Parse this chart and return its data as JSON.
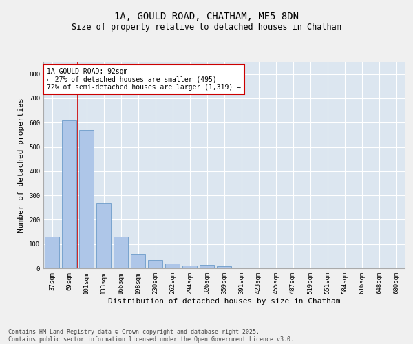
{
  "title_line1": "1A, GOULD ROAD, CHATHAM, ME5 8DN",
  "title_line2": "Size of property relative to detached houses in Chatham",
  "xlabel": "Distribution of detached houses by size in Chatham",
  "ylabel": "Number of detached properties",
  "categories": [
    "37sqm",
    "69sqm",
    "101sqm",
    "133sqm",
    "166sqm",
    "198sqm",
    "230sqm",
    "262sqm",
    "294sqm",
    "326sqm",
    "359sqm",
    "391sqm",
    "423sqm",
    "455sqm",
    "487sqm",
    "519sqm",
    "551sqm",
    "584sqm",
    "616sqm",
    "648sqm",
    "680sqm"
  ],
  "values": [
    130,
    610,
    570,
    270,
    130,
    60,
    35,
    20,
    12,
    14,
    8,
    2,
    1,
    0,
    0,
    0,
    0,
    0,
    0,
    0,
    1
  ],
  "bar_color": "#aec6e8",
  "bar_edge_color": "#5a8fc2",
  "vline_x": 1.5,
  "vline_color": "#cc0000",
  "annotation_text": "1A GOULD ROAD: 92sqm\n← 27% of detached houses are smaller (495)\n72% of semi-detached houses are larger (1,319) →",
  "annotation_box_color": "#ffffff",
  "annotation_box_edge": "#cc0000",
  "ylim": [
    0,
    850
  ],
  "yticks": [
    0,
    100,
    200,
    300,
    400,
    500,
    600,
    700,
    800
  ],
  "background_color": "#dce6f0",
  "fig_background_color": "#f0f0f0",
  "footer_text": "Contains HM Land Registry data © Crown copyright and database right 2025.\nContains public sector information licensed under the Open Government Licence v3.0.",
  "title_fontsize": 10,
  "subtitle_fontsize": 8.5,
  "axis_label_fontsize": 8,
  "tick_fontsize": 6.5,
  "annotation_fontsize": 7,
  "footer_fontsize": 6
}
